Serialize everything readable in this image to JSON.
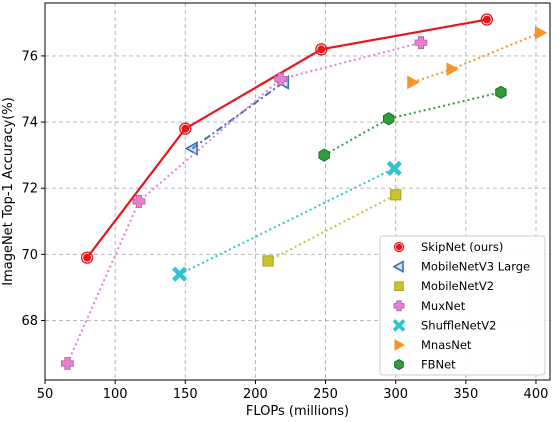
{
  "chart_data": {
    "type": "line",
    "title": "",
    "xlabel": "FLOPs (millions)",
    "ylabel": "ImageNet Top-1 Accuracy(%)",
    "xlim": [
      50,
      410
    ],
    "ylim": [
      66.2,
      77.6
    ],
    "xticks": [
      50,
      100,
      150,
      200,
      250,
      300,
      350,
      400
    ],
    "yticks": [
      68,
      70,
      72,
      74,
      76
    ],
    "grid": true,
    "legend_position": "lower-right",
    "series": [
      {
        "name": "SkipNet (ours)",
        "color": "#e8151b",
        "line": "solid",
        "marker": "circle",
        "x": [
          80,
          150,
          247,
          365
        ],
        "y": [
          69.9,
          73.8,
          76.2,
          77.1
        ]
      },
      {
        "name": "MobileNetV3 Large",
        "color": "#3a6fb2",
        "line": "dashdot",
        "marker": "triangle-left",
        "x": [
          155,
          220
        ],
        "y": [
          73.2,
          75.2
        ]
      },
      {
        "name": "MobileNetV2",
        "color": "#c9c32f",
        "line": "dotted",
        "marker": "square",
        "x": [
          209,
          300
        ],
        "y": [
          69.8,
          71.8
        ]
      },
      {
        "name": "MuxNet",
        "color": "#e57fd0",
        "line": "dotted",
        "marker": "plus",
        "x": [
          66,
          117,
          218,
          318
        ],
        "y": [
          66.7,
          71.6,
          75.3,
          76.4
        ]
      },
      {
        "name": "ShuffleNetV2",
        "color": "#2ec4d6",
        "line": "dotted",
        "marker": "x",
        "x": [
          146,
          299
        ],
        "y": [
          69.4,
          72.6
        ]
      },
      {
        "name": "MnasNet",
        "color": "#f7922c",
        "line": "dotted",
        "marker": "triangle-right",
        "x": [
          312,
          340,
          403
        ],
        "y": [
          75.2,
          75.6,
          76.7
        ]
      },
      {
        "name": "FBNet",
        "color": "#2e9e3a",
        "line": "dotted",
        "marker": "hexagon",
        "x": [
          249,
          295,
          375
        ],
        "y": [
          73.0,
          74.1,
          74.9
        ]
      }
    ]
  }
}
